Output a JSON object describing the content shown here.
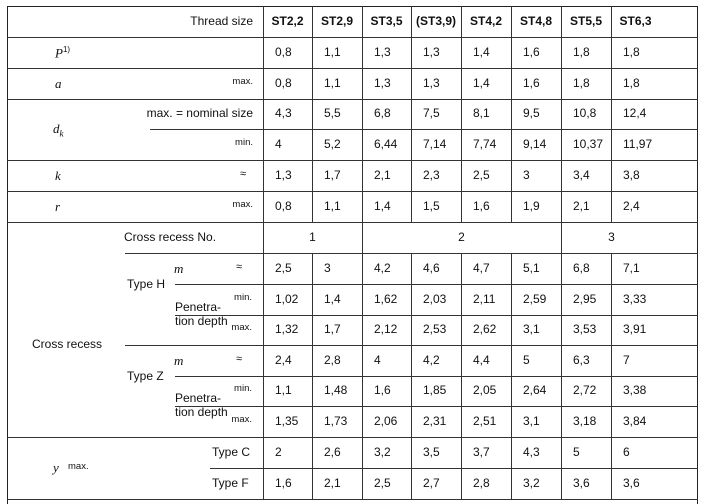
{
  "header": {
    "label": "Thread size",
    "sizes": [
      "ST2,2",
      "ST2,9",
      "ST3,5",
      "(ST3,9)",
      "ST4,2",
      "ST4,8",
      "ST5,5",
      "ST6,3"
    ]
  },
  "rows": {
    "p": {
      "symbol": "P",
      "sup": "1)",
      "values": [
        "0,8",
        "1,1",
        "1,3",
        "1,3",
        "1,4",
        "1,6",
        "1,8",
        "1,8"
      ]
    },
    "a": {
      "symbol": "a",
      "qual": "max.",
      "values": [
        "0,8",
        "1,1",
        "1,3",
        "1,3",
        "1,4",
        "1,6",
        "1,8",
        "1,8"
      ]
    },
    "dk": {
      "symbol": "d",
      "sub": "k",
      "max_qual": "max. = nominal size",
      "max_values": [
        "4,3",
        "5,5",
        "6,8",
        "7,5",
        "8,1",
        "9,5",
        "10,8",
        "12,4"
      ],
      "min_qual": "min.",
      "min_values": [
        "4",
        "5,2",
        "6,44",
        "7,14",
        "7,74",
        "9,14",
        "10,37",
        "11,97"
      ]
    },
    "k": {
      "symbol": "k",
      "qual": "≈",
      "values": [
        "1,3",
        "1,7",
        "2,1",
        "2,3",
        "2,5",
        "3",
        "3,4",
        "3,8"
      ]
    },
    "r": {
      "symbol": "r",
      "qual": "max.",
      "values": [
        "0,8",
        "1,1",
        "1,4",
        "1,5",
        "1,6",
        "1,9",
        "2,1",
        "2,4"
      ]
    }
  },
  "cross_recess": {
    "label": "Cross recess",
    "no_label": "Cross recess No.",
    "no_values": [
      "1",
      "2",
      "3"
    ],
    "type_h": {
      "label": "Type H",
      "m_symbol": "m",
      "m_qual": "≈",
      "m_values": [
        "2,5",
        "3",
        "4,2",
        "4,6",
        "4,7",
        "5,1",
        "6,8",
        "7,1"
      ],
      "pen_label_1": "Penetra-",
      "pen_label_2": "tion depth",
      "min_qual": "min.",
      "min_values": [
        "1,02",
        "1,4",
        "1,62",
        "2,03",
        "2,11",
        "2,59",
        "2,95",
        "3,33"
      ],
      "max_qual": "max.",
      "max_values": [
        "1,32",
        "1,7",
        "2,12",
        "2,53",
        "2,62",
        "3,1",
        "3,53",
        "3,91"
      ]
    },
    "type_z": {
      "label": "Type Z",
      "m_symbol": "m",
      "m_qual": "≈",
      "m_values": [
        "2,4",
        "2,8",
        "4",
        "4,2",
        "4,4",
        "5",
        "6,3",
        "7"
      ],
      "pen_label_1": "Penetra-",
      "pen_label_2": "tion depth",
      "min_qual": "min.",
      "min_values": [
        "1,1",
        "1,48",
        "1,6",
        "1,85",
        "2,05",
        "2,64",
        "2,72",
        "3,38"
      ],
      "max_qual": "max.",
      "max_values": [
        "1,35",
        "1,73",
        "2,06",
        "2,31",
        "2,51",
        "3,1",
        "3,18",
        "3,84"
      ]
    }
  },
  "y": {
    "symbol": "y",
    "qual": "max.",
    "type_c_label": "Type C",
    "type_c_values": [
      "2",
      "2,6",
      "3,2",
      "3,5",
      "3,7",
      "4,3",
      "5",
      "6"
    ],
    "type_f_label": "Type F",
    "type_f_values": [
      "1,6",
      "2,1",
      "2,5",
      "2,7",
      "2,8",
      "3,2",
      "3,6",
      "3,6"
    ]
  }
}
